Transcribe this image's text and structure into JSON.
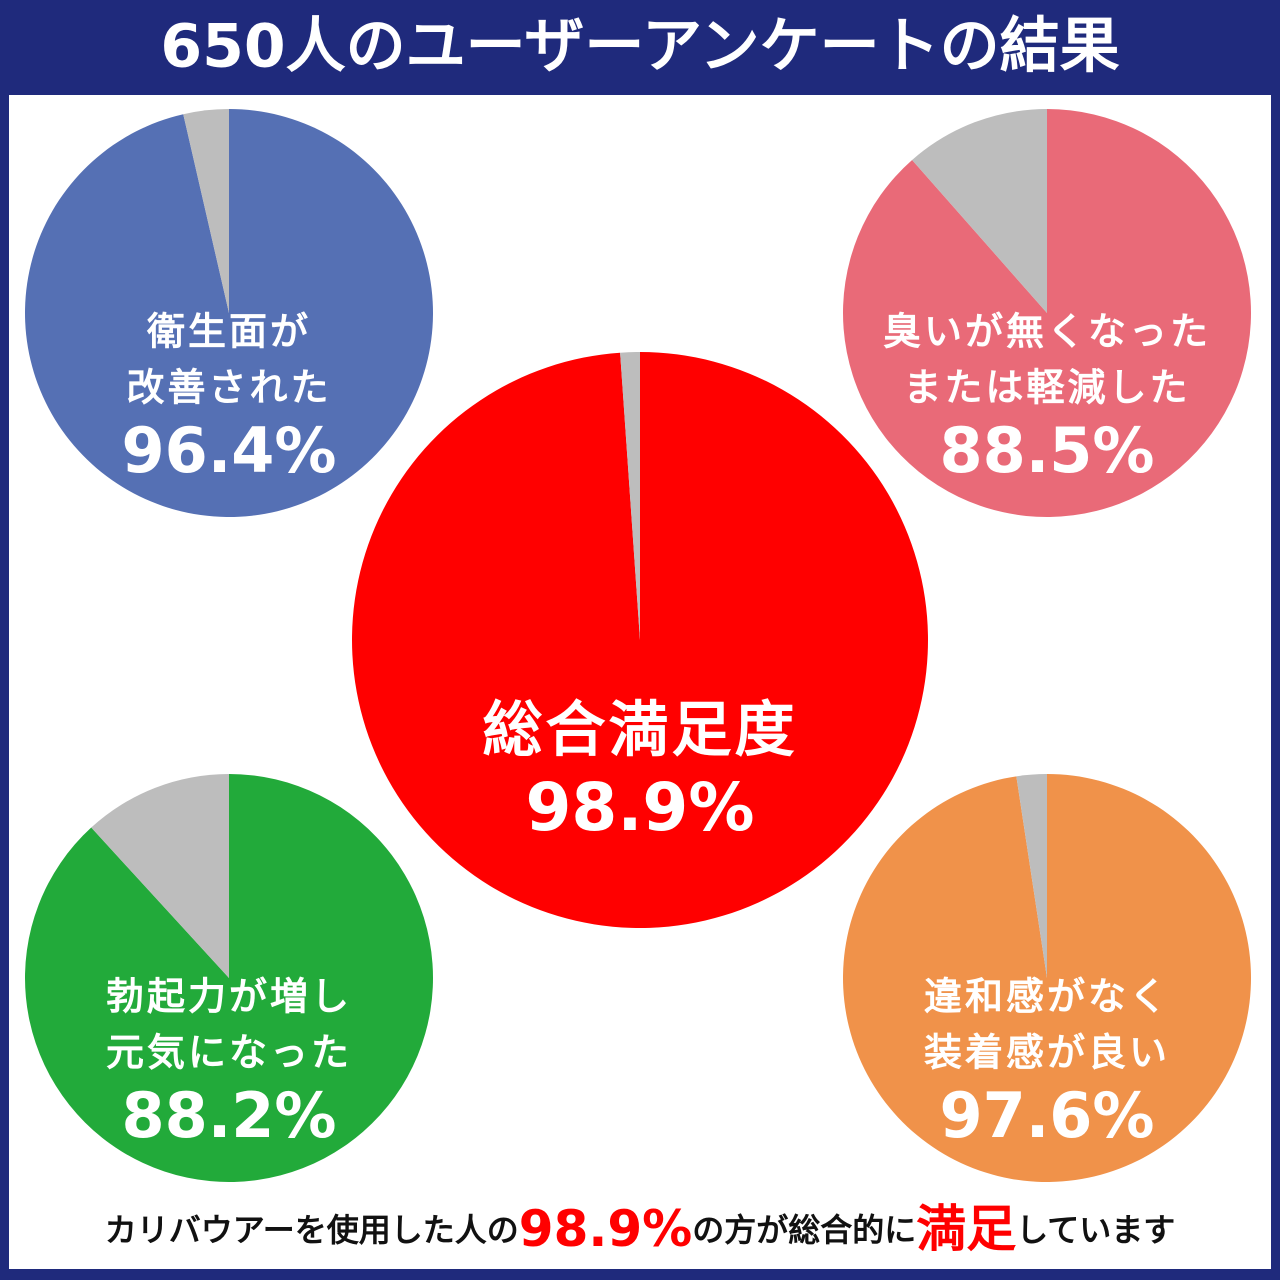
{
  "title": "650人のユーザーアンケートの結果",
  "chart_data": [
    {
      "type": "pie",
      "label": [
        "衛生面が",
        "改善された"
      ],
      "values": [
        96.4
      ],
      "value_labels": [
        "96.4%"
      ],
      "color": "#5570b4"
    },
    {
      "type": "pie",
      "label": [
        "臭いが無くなった",
        "または軽減した"
      ],
      "values": [
        88.5
      ],
      "value_labels": [
        "88.5%"
      ],
      "color": "#e96a78"
    },
    {
      "type": "pie",
      "label": [
        "総合満足度"
      ],
      "values": [
        98.9
      ],
      "value_labels": [
        "98.9%"
      ],
      "color": "#ff0000"
    },
    {
      "type": "pie",
      "label": [
        "勃起力が増し",
        "元気になった"
      ],
      "values": [
        88.2
      ],
      "value_labels": [
        "88.2%"
      ],
      "color": "#22aa3a"
    },
    {
      "type": "pie",
      "label": [
        "違和感がなく",
        "装着感が良い"
      ],
      "values": [
        97.6
      ],
      "value_labels": [
        "97.6%"
      ],
      "color": "#f0924a"
    }
  ],
  "footer": [
    {
      "text": "カリバウアーを使用した人の",
      "color": "#111111"
    },
    {
      "text": "98.9%",
      "color": "#ff0000"
    },
    {
      "text": "の方が総合的に",
      "color": "#111111"
    },
    {
      "text": "満足",
      "color": "#ff0000"
    },
    {
      "text": "しています",
      "color": "#111111"
    }
  ]
}
